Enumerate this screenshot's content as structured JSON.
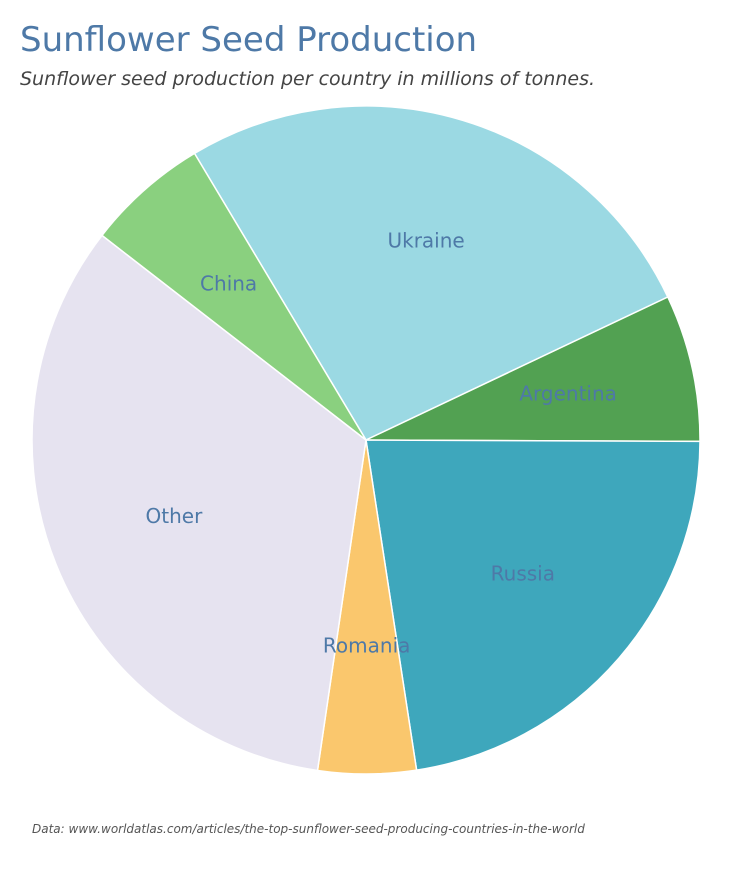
{
  "chart_data": {
    "type": "pie",
    "title": "Sunflower Seed Production",
    "subtitle": "Sunflower seed production per country in millions of tonnes.",
    "source": "Data: www.worldatlas.com/articles/the-top-sunflower-seed-producing-countries-in-the-world",
    "label_color": "#4e79a7",
    "slices": [
      {
        "label": "Ukraine",
        "value": 11.2,
        "color": "#9bd9e3"
      },
      {
        "label": "Argentina",
        "value": 3.0,
        "color": "#52a152"
      },
      {
        "label": "Russia",
        "value": 9.5,
        "color": "#3ea7bc"
      },
      {
        "label": "Romania",
        "value": 2.0,
        "color": "#fac76d"
      },
      {
        "label": "Other",
        "value": 14.0,
        "color": "#e6e3f0"
      },
      {
        "label": "China",
        "value": 2.5,
        "color": "#8ad07f"
      }
    ]
  }
}
